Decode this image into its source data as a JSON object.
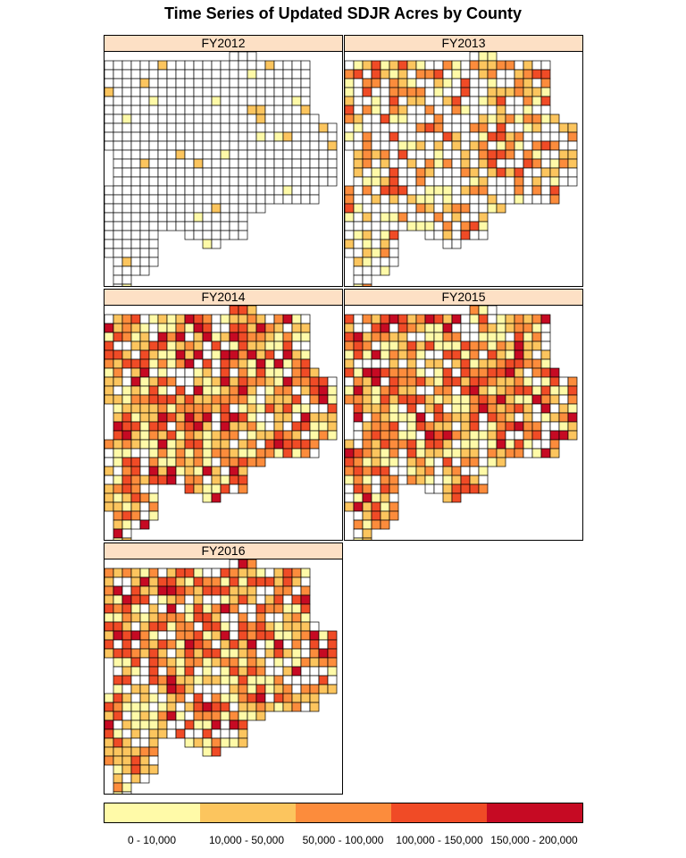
{
  "title": "Time Series of Updated SDJR Acres by County",
  "panels": [
    {
      "label": "FY2012",
      "fill_level": 0.08
    },
    {
      "label": "FY2013",
      "fill_level": 0.55
    },
    {
      "label": "FY2014",
      "fill_level": 0.85
    },
    {
      "label": "FY2015",
      "fill_level": 0.8
    },
    {
      "label": "FY2016",
      "fill_level": 0.75
    }
  ],
  "legend": {
    "classes": [
      {
        "label": "0 - 10,000",
        "color": "#fffaa8"
      },
      {
        "label": "10,000 - 50,000",
        "color": "#fcc55e"
      },
      {
        "label": "50,000 - 100,000",
        "color": "#fc8c3c"
      },
      {
        "label": "100,000 - 150,000",
        "color": "#f04b26"
      },
      {
        "label": "150,000 - 200,000",
        "color": "#c60a23"
      }
    ],
    "no_data_color": "#ffffff"
  }
}
